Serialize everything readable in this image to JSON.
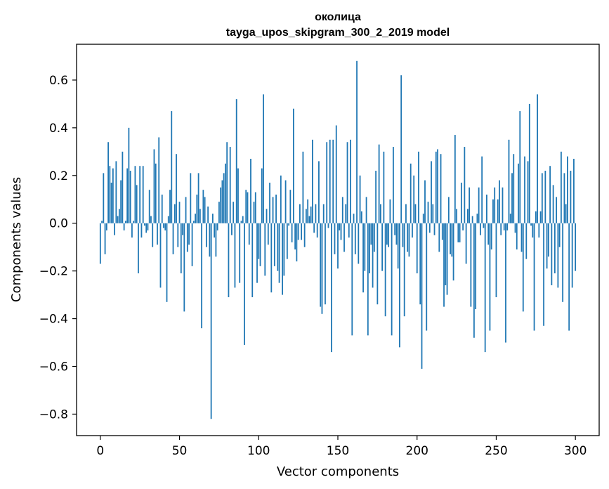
{
  "chart_data": {
    "type": "bar",
    "title": "околица",
    "subtitle": "tayga_upos_skipgram_300_2_2019 model",
    "xlabel": "Vector components",
    "ylabel": "Components values",
    "xlim": [
      -15,
      315
    ],
    "ylim": [
      -0.89,
      0.75
    ],
    "xticks": [
      0,
      50,
      100,
      150,
      200,
      250,
      300
    ],
    "yticks": [
      -0.8,
      -0.6,
      -0.4,
      -0.2,
      0.0,
      0.2,
      0.4,
      0.6
    ],
    "ytick_labels": [
      "−0.8",
      "−0.6",
      "−0.4",
      "−0.2",
      "0.0",
      "0.2",
      "0.4",
      "0.6"
    ],
    "bar_color": "#1f77b4",
    "grid": false,
    "values": [
      -0.17,
      0.01,
      0.21,
      -0.13,
      -0.03,
      0.34,
      0.24,
      0.17,
      0.23,
      -0.05,
      0.26,
      0.03,
      0.06,
      0.18,
      0.3,
      -0.03,
      0.01,
      0.23,
      0.4,
      0.22,
      -0.06,
      0.01,
      0.24,
      0.16,
      -0.21,
      0.24,
      -0.06,
      0.24,
      -0.01,
      -0.04,
      -0.03,
      0.14,
      0.03,
      -0.1,
      0.31,
      0.25,
      -0.09,
      0.36,
      -0.27,
      0.12,
      -0.02,
      -0.03,
      -0.33,
      0.03,
      0.14,
      0.47,
      -0.13,
      0.08,
      0.29,
      -0.1,
      0.09,
      -0.21,
      -0.05,
      -0.37,
      0.11,
      -0.12,
      -0.09,
      0.21,
      -0.18,
      0.01,
      0.04,
      0.12,
      0.21,
      0.06,
      -0.44,
      0.14,
      0.11,
      -0.1,
      0.07,
      -0.14,
      -0.82,
      0.04,
      -0.06,
      -0.14,
      -0.03,
      0.09,
      0.15,
      0.18,
      0.21,
      0.25,
      0.34,
      -0.31,
      0.32,
      -0.05,
      0.09,
      -0.27,
      0.52,
      0.23,
      -0.25,
      0.01,
      0.03,
      -0.51,
      0.14,
      0.13,
      -0.09,
      0.27,
      -0.31,
      0.09,
      0.13,
      -0.25,
      -0.15,
      -0.18,
      0.23,
      0.54,
      -0.22,
      0.06,
      -0.09,
      0.17,
      -0.29,
      0.11,
      -0.18,
      0.12,
      -0.2,
      -0.25,
      0.2,
      -0.3,
      -0.22,
      0.18,
      -0.15,
      -0.01,
      0.14,
      -0.08,
      0.48,
      -0.11,
      -0.16,
      -0.07,
      0.08,
      -0.07,
      0.3,
      -0.1,
      0.06,
      0.1,
      0.03,
      0.07,
      0.35,
      -0.04,
      0.08,
      -0.06,
      0.26,
      -0.35,
      -0.38,
      0.08,
      -0.34,
      0.34,
      -0.02,
      0.35,
      -0.54,
      0.35,
      -0.13,
      0.41,
      -0.19,
      -0.03,
      -0.07,
      0.11,
      -0.12,
      0.08,
      0.34,
      -0.06,
      0.35,
      -0.47,
      0.04,
      -0.13,
      0.68,
      -0.17,
      0.2,
      0.05,
      -0.29,
      -0.2,
      0.11,
      -0.47,
      -0.21,
      -0.09,
      -0.27,
      -0.12,
      0.22,
      -0.34,
      0.33,
      0.08,
      -0.2,
      0.3,
      -0.39,
      -0.09,
      -0.1,
      0.1,
      -0.47,
      0.32,
      -0.05,
      -0.09,
      -0.19,
      -0.52,
      0.62,
      -0.1,
      -0.39,
      0.08,
      -0.12,
      -0.14,
      0.25,
      -0.06,
      0.2,
      0.08,
      -0.21,
      0.3,
      -0.34,
      -0.61,
      0.04,
      0.18,
      -0.45,
      0.09,
      -0.04,
      0.26,
      0.08,
      -0.05,
      0.3,
      0.31,
      -0.12,
      0.29,
      -0.07,
      -0.35,
      -0.26,
      -0.3,
      0.11,
      -0.13,
      -0.14,
      -0.24,
      0.37,
      0.06,
      -0.08,
      -0.08,
      0.17,
      -0.03,
      0.32,
      -0.17,
      0.06,
      0.15,
      -0.35,
      0.03,
      -0.48,
      -0.36,
      0.04,
      0.15,
      -0.05,
      0.28,
      -0.02,
      -0.54,
      0.12,
      -0.09,
      -0.45,
      -0.11,
      0.1,
      0.15,
      -0.31,
      0.1,
      0.18,
      -0.05,
      0.15,
      -0.03,
      -0.5,
      -0.03,
      0.35,
      0.04,
      0.21,
      0.29,
      -0.04,
      -0.11,
      0.25,
      0.47,
      -0.12,
      -0.37,
      0.28,
      -0.15,
      0.26,
      0.5,
      -0.01,
      -0.06,
      -0.45,
      0.05,
      0.54,
      -0.06,
      0.05,
      0.21,
      -0.43,
      0.22,
      -0.19,
      -0.14,
      0.24,
      -0.26,
      0.16,
      -0.21,
      0.11,
      -0.27,
      -0.1,
      0.3,
      -0.33,
      0.21,
      0.08,
      0.28,
      -0.45,
      0.22,
      -0.27,
      0.27,
      -0.2
    ]
  }
}
